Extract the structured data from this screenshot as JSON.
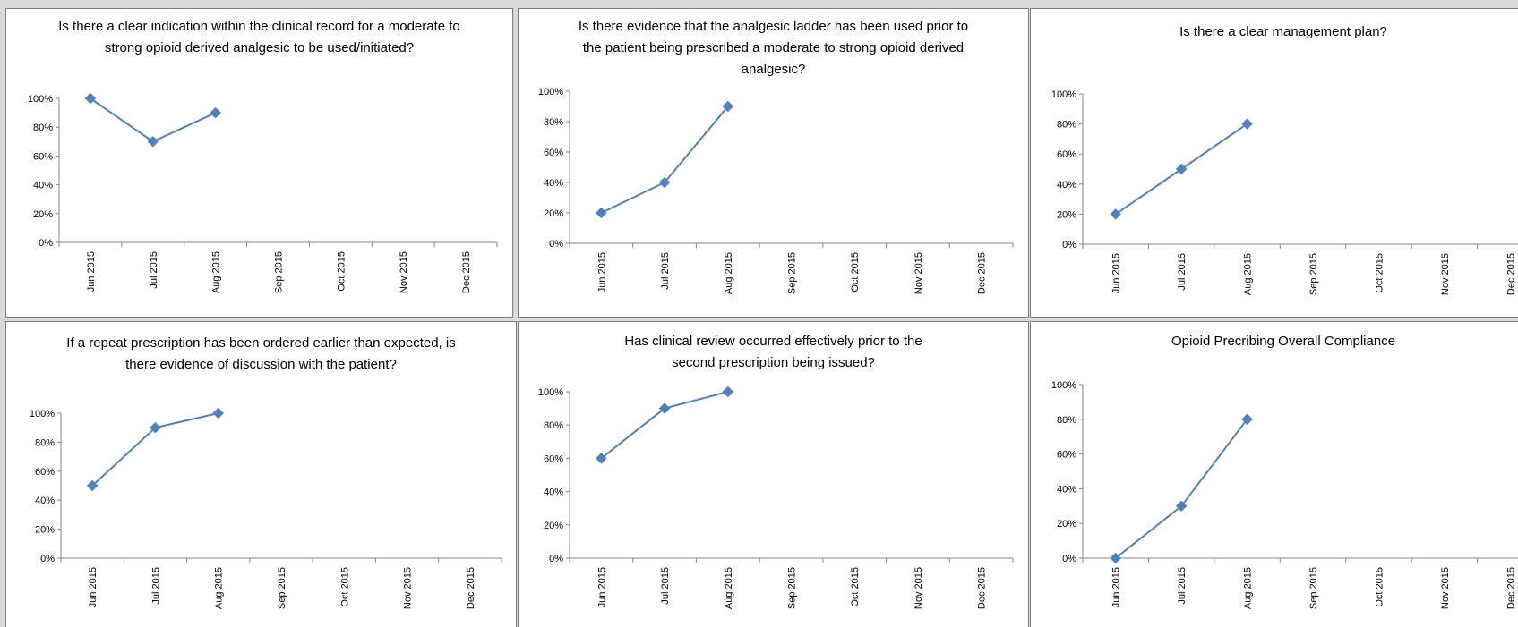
{
  "chart_data": [
    {
      "type": "line",
      "title": "Is there a clear indication within the clinical record for a moderate to strong opioid derived analgesic to be used/initiated?",
      "categories": [
        "Jun 2015",
        "Jul 2015",
        "Aug 2015",
        "Sep 2015",
        "Oct 2015",
        "Nov 2015",
        "Dec 2015"
      ],
      "series": [
        {
          "values": [
            1.0,
            0.7,
            0.9,
            null,
            null,
            null,
            null
          ]
        }
      ],
      "ylim": [
        0,
        1
      ],
      "yticks": [
        "0%",
        "20%",
        "40%",
        "60%",
        "80%",
        "100%"
      ],
      "marker": "diamond",
      "color": "#4f81bd",
      "grid": false
    },
    {
      "type": "line",
      "title": "Is there evidence that the analgesic ladder has been used prior to the patient being prescribed a moderate to strong opioid derived analgesic?",
      "categories": [
        "Jun 2015",
        "Jul 2015",
        "Aug 2015",
        "Sep 2015",
        "Oct 2015",
        "Nov 2015",
        "Dec 2015"
      ],
      "series": [
        {
          "values": [
            0.2,
            0.4,
            0.9,
            null,
            null,
            null,
            null
          ]
        }
      ],
      "ylim": [
        0,
        1
      ],
      "yticks": [
        "0%",
        "20%",
        "40%",
        "60%",
        "80%",
        "100%"
      ],
      "marker": "diamond",
      "color": "#4f81bd",
      "grid": false
    },
    {
      "type": "line",
      "title": "Is there a clear management plan?",
      "categories": [
        "Jun 2015",
        "Jul 2015",
        "Aug 2015",
        "Sep 2015",
        "Oct 2015",
        "Nov 2015",
        "Dec 2015"
      ],
      "series": [
        {
          "values": [
            0.2,
            0.5,
            0.8,
            null,
            null,
            null,
            null
          ]
        }
      ],
      "ylim": [
        0,
        1
      ],
      "yticks": [
        "0%",
        "20%",
        "40%",
        "60%",
        "80%",
        "100%"
      ],
      "marker": "diamond",
      "color": "#4f81bd",
      "grid": false
    },
    {
      "type": "line",
      "title": "If a repeat prescription has been ordered earlier than expected, is there evidence of discussion with the patient?",
      "categories": [
        "Jun 2015",
        "Jul 2015",
        "Aug 2015",
        "Sep 2015",
        "Oct 2015",
        "Nov 2015",
        "Dec 2015"
      ],
      "series": [
        {
          "values": [
            0.5,
            0.9,
            1.0,
            null,
            null,
            null,
            null
          ]
        }
      ],
      "ylim": [
        0,
        1
      ],
      "yticks": [
        "0%",
        "20%",
        "40%",
        "60%",
        "80%",
        "100%"
      ],
      "marker": "diamond",
      "color": "#4f81bd",
      "grid": false
    },
    {
      "type": "line",
      "title": "Has clinical review occurred effectively prior to the second prescription being issued?",
      "categories": [
        "Jun 2015",
        "Jul 2015",
        "Aug 2015",
        "Sep 2015",
        "Oct 2015",
        "Nov 2015",
        "Dec 2015"
      ],
      "series": [
        {
          "values": [
            0.6,
            0.9,
            1.0,
            null,
            null,
            null,
            null
          ]
        }
      ],
      "ylim": [
        0,
        1
      ],
      "yticks": [
        "0%",
        "20%",
        "40%",
        "60%",
        "80%",
        "100%"
      ],
      "marker": "diamond",
      "color": "#4f81bd",
      "grid": false
    },
    {
      "type": "line",
      "title": "Opioid Precribing Overall Compliance",
      "categories": [
        "Jun 2015",
        "Jul 2015",
        "Aug 2015",
        "Sep 2015",
        "Oct 2015",
        "Nov 2015",
        "Dec 2015"
      ],
      "series": [
        {
          "values": [
            0.0,
            0.3,
            0.8,
            null,
            null,
            null,
            null
          ]
        }
      ],
      "ylim": [
        0,
        1
      ],
      "yticks": [
        "0%",
        "20%",
        "40%",
        "60%",
        "80%",
        "100%"
      ],
      "marker": "diamond",
      "color": "#4f81bd",
      "grid": false
    }
  ]
}
